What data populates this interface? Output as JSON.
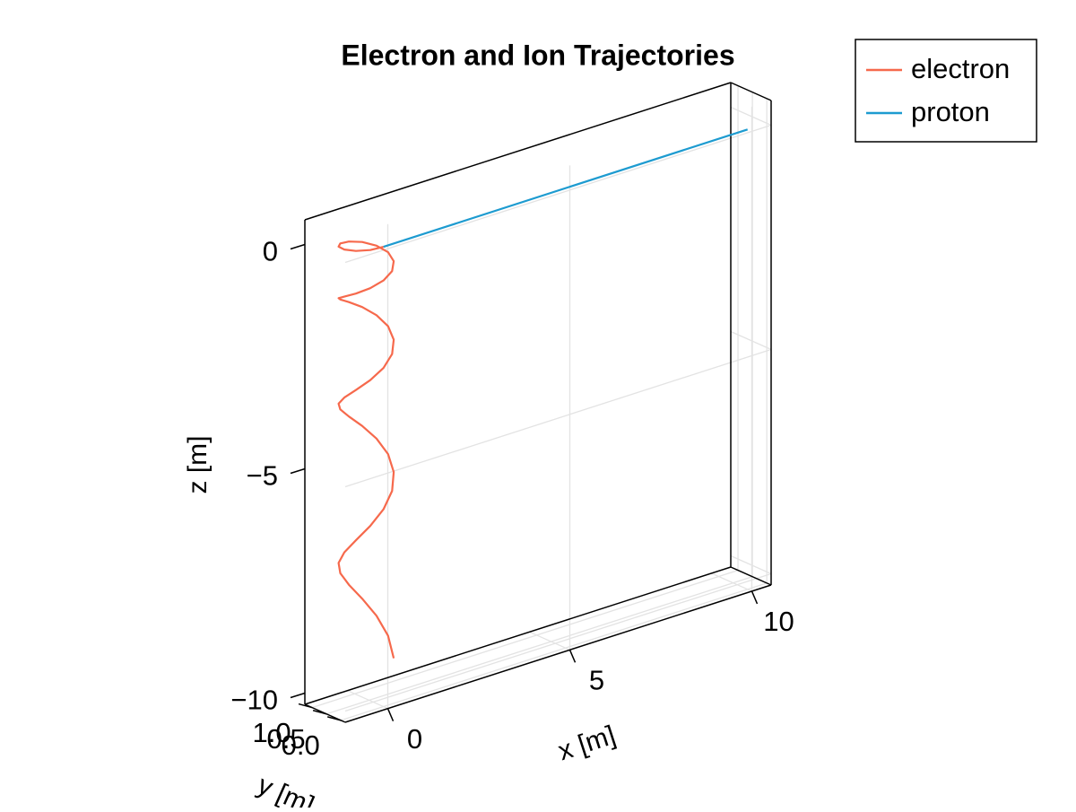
{
  "chart_data": {
    "type": "line3d",
    "title": "Electron and Ion Trajectories",
    "xlabel": "x [m]",
    "ylabel": "y [m]",
    "zlabel": "z [m]",
    "xlim": [
      -1.17,
      10.53
    ],
    "ylim": [
      -0.15,
      1.25
    ],
    "zlim": [
      -10.25,
      0.55
    ],
    "xticks": [
      0,
      5,
      10
    ],
    "yticks": [
      {
        "value": 0,
        "label": "0.0"
      },
      0.5,
      {
        "value": 1,
        "label": "1.0"
      }
    ],
    "zticks": [
      {
        "value": -10,
        "label": "−10"
      },
      {
        "value": -5,
        "label": "−5"
      },
      0
    ],
    "grid": true,
    "legend": "outside-top-right",
    "series": [
      {
        "name": "electron",
        "color": "#f6694c",
        "x": [
          0,
          -0.3,
          -0.52,
          -0.6,
          -0.52,
          -0.3,
          0,
          0.3,
          0.52,
          0.6,
          0.52,
          0.3,
          0,
          -0.3,
          -0.52,
          -0.6,
          -0.52,
          -0.3,
          0,
          0.3,
          0.52,
          0.6,
          0.52,
          0.3,
          0,
          -0.3,
          -0.52,
          -0.6,
          -0.52,
          -0.3,
          0,
          0.3,
          0.52,
          0.6,
          0.52,
          0.3,
          0,
          -0.3,
          -0.52,
          -0.6,
          -0.52,
          -0.3,
          0,
          0.3,
          0.52,
          0.6,
          0.52
        ],
        "y": [
          0,
          0.08,
          0.3,
          0.6,
          0.9,
          1.12,
          1.2,
          1.12,
          0.9,
          0.6,
          0.3,
          0.08,
          0,
          0.08,
          0.3,
          0.6,
          0.9,
          1.12,
          1.2,
          1.12,
          0.9,
          0.6,
          0.3,
          0.08,
          0,
          0.08,
          0.3,
          0.6,
          0.9,
          1.12,
          1.2,
          1.12,
          0.9,
          0.6,
          0.3,
          0.08,
          0,
          0.08,
          0.3,
          0.6,
          0.9,
          1.12,
          1.2,
          1.12,
          0.9,
          0.6,
          0.3
        ],
        "z": [
          0,
          -0.017,
          -0.042,
          -0.075,
          -0.117,
          -0.167,
          -0.225,
          -0.292,
          -0.367,
          -0.45,
          -0.542,
          -0.642,
          -0.75,
          -0.867,
          -0.992,
          -1.125,
          -1.267,
          -1.417,
          -1.575,
          -1.742,
          -1.917,
          -2.1,
          -2.292,
          -2.492,
          -2.7,
          -2.917,
          -3.142,
          -3.375,
          -3.617,
          -3.867,
          -4.125,
          -4.392,
          -4.667,
          -4.95,
          -5.242,
          -5.542,
          -5.85,
          -6.167,
          -6.492,
          -6.825,
          -7.167,
          -7.517,
          -7.875,
          -8.242,
          -8.617,
          -9.0,
          -9.392
        ]
      },
      {
        "name": "proton",
        "color": "#1d9bd0",
        "x": [
          0,
          10
        ],
        "y": [
          0,
          0
        ],
        "z": [
          0,
          0
        ]
      }
    ]
  }
}
